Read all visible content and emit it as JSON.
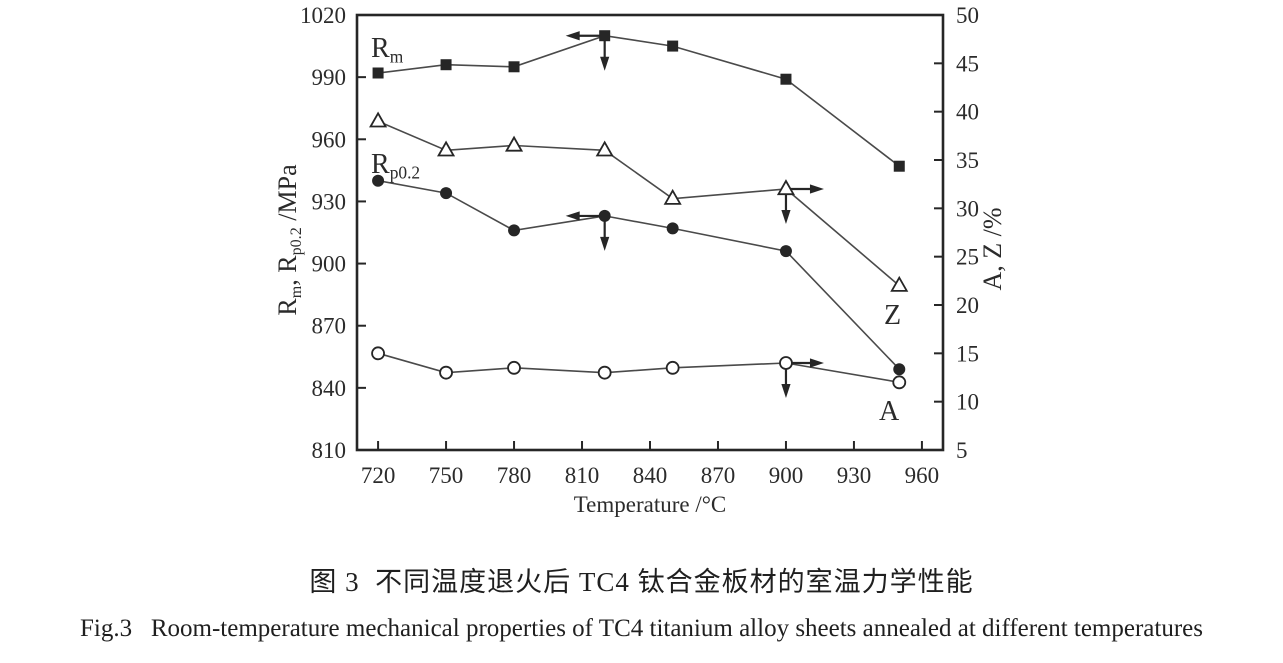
{
  "figure": {
    "caption_cn": "图 3  不同温度退火后 TC4 钛合金板材的室温力学性能",
    "caption_en": "Fig.3   Room-temperature mechanical properties of TC4 titanium alloy sheets annealed at different temperatures"
  },
  "chart_data": {
    "type": "line",
    "x_label": "Temperature /°C",
    "x": [
      720,
      750,
      780,
      820,
      850,
      900,
      950
    ],
    "x_ticks": [
      720,
      750,
      780,
      810,
      840,
      870,
      900,
      930,
      960
    ],
    "x_range": [
      710.7,
      969.3
    ],
    "grid": false,
    "left_axis": {
      "label": "Rm, Rp0.2 /MPa",
      "label_parts": [
        {
          "t": "R"
        },
        {
          "t": "m",
          "sub": true
        },
        {
          "t": ", R"
        },
        {
          "t": "p0.2",
          "sub": true
        },
        {
          "t": " /MPa"
        }
      ],
      "ticks": [
        810,
        840,
        870,
        900,
        930,
        960,
        990,
        1020
      ],
      "range": [
        810,
        1020
      ]
    },
    "right_axis": {
      "label": "A, Z /%",
      "label_parts": [
        {
          "t": "A, Z /%"
        }
      ],
      "ticks": [
        5,
        10,
        15,
        20,
        25,
        30,
        35,
        40,
        45,
        50
      ],
      "range": [
        5,
        50
      ]
    },
    "series": [
      {
        "name": "Rm",
        "label_parts": [
          {
            "t": "R"
          },
          {
            "t": "m",
            "sub": true
          }
        ],
        "axis": "left",
        "marker": "filled-square",
        "values": [
          992,
          996,
          995,
          1010,
          1005,
          989,
          947
        ]
      },
      {
        "name": "Rp0.2",
        "label_parts": [
          {
            "t": "R"
          },
          {
            "t": "p0.2",
            "sub": true
          }
        ],
        "axis": "left",
        "marker": "filled-circle",
        "values": [
          940,
          934,
          916,
          923,
          917,
          906,
          849
        ]
      },
      {
        "name": "Z",
        "label_parts": [
          {
            "t": "Z"
          }
        ],
        "axis": "right",
        "marker": "open-triangle",
        "values": [
          39,
          36,
          36.5,
          36,
          31,
          32,
          22
        ]
      },
      {
        "name": "A",
        "label_parts": [
          {
            "t": "A"
          }
        ],
        "axis": "right",
        "marker": "open-circle",
        "values": [
          15,
          13,
          13.5,
          13,
          13.5,
          14,
          12
        ]
      }
    ],
    "pointer_arrows": [
      {
        "series": "Rm",
        "x": 820,
        "directions": [
          "left",
          "down"
        ]
      },
      {
        "series": "Rp0.2",
        "x": 820,
        "directions": [
          "left",
          "down"
        ]
      },
      {
        "series": "Z",
        "x": 900,
        "directions": [
          "right",
          "down"
        ]
      },
      {
        "series": "A",
        "x": 900,
        "directions": [
          "right",
          "down"
        ]
      }
    ],
    "colors": {
      "ink": "#262626",
      "line": "#4a4a4a",
      "background": "#ffffff"
    }
  }
}
